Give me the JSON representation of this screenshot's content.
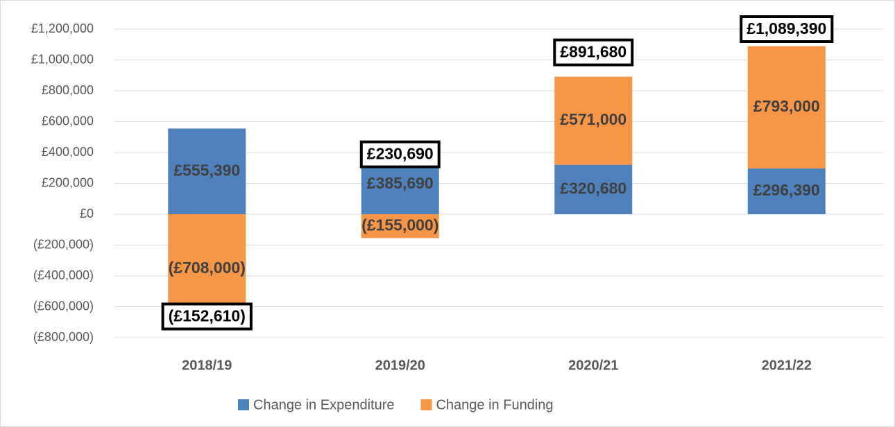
{
  "chart_data": {
    "type": "bar",
    "stacked": true,
    "categories": [
      "2018/19",
      "2019/20",
      "2020/21",
      "2021/22"
    ],
    "series": [
      {
        "name": "Change in Expenditure",
        "color": "#4f81bd",
        "values": [
          555390,
          385690,
          320680,
          296390
        ],
        "value_labels": [
          "£555,390",
          "£385,690",
          "£320,680",
          "£296,390"
        ]
      },
      {
        "name": "Change in Funding",
        "color": "#f79646",
        "values": [
          -708000,
          -155000,
          571000,
          793000
        ],
        "value_labels": [
          "(£708,000)",
          "(£155,000)",
          "£571,000",
          "£793,000"
        ]
      }
    ],
    "totals": {
      "values": [
        -152610,
        230690,
        891680,
        1089390
      ],
      "value_labels": [
        "(£152,610)",
        "£230,690",
        "£891,680",
        "£1,089,390"
      ]
    },
    "ylim": [
      -800000,
      1200000
    ],
    "yticks": [
      {
        "value": -800000,
        "label": "(£800,000)"
      },
      {
        "value": -600000,
        "label": "(£600,000)"
      },
      {
        "value": -400000,
        "label": "(£400,000)"
      },
      {
        "value": -200000,
        "label": "(£200,000)"
      },
      {
        "value": 0,
        "label": "£0"
      },
      {
        "value": 200000,
        "label": "£200,000"
      },
      {
        "value": 400000,
        "label": "£400,000"
      },
      {
        "value": 600000,
        "label": "£600,000"
      },
      {
        "value": 800000,
        "label": "£800,000"
      },
      {
        "value": 1000000,
        "label": "£1,000,000"
      },
      {
        "value": 1200000,
        "label": "£1,200,000"
      }
    ],
    "grid": true,
    "legend": "bottom"
  }
}
